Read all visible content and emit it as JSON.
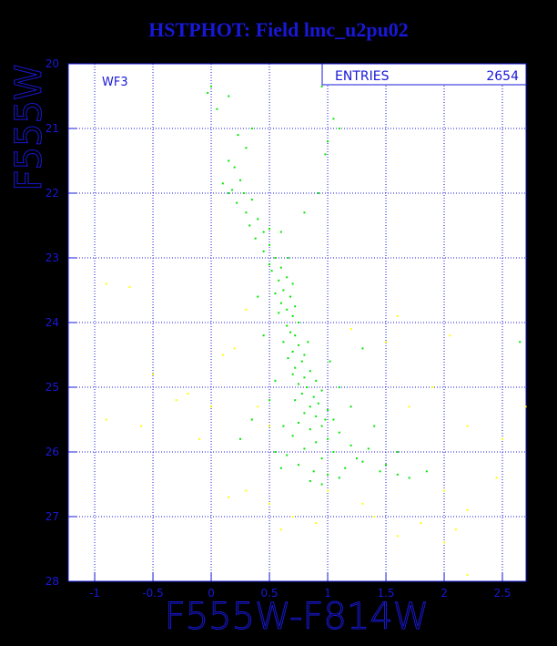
{
  "chart_data": {
    "type": "scatter",
    "title": "HSTPHOT: Field lmc_u2pu02",
    "xlabel": "F555W-F814W",
    "ylabel": "F555W",
    "annotation": "WF3",
    "stats": {
      "label": "ENTRIES",
      "value": 2654
    },
    "xlim": [
      -1.227,
      2.703
    ],
    "ylim": [
      28,
      20
    ],
    "xticks": [
      -1,
      -0.5,
      0,
      0.5,
      1,
      1.5,
      2,
      2.5
    ],
    "yticks": [
      20,
      21,
      22,
      23,
      24,
      25,
      26,
      27,
      28
    ],
    "grid": true,
    "series": [
      {
        "color": "#00e600",
        "x": [
          0.0,
          -0.03,
          0.15,
          0.05,
          0.95,
          1.05,
          1.1,
          1.0,
          0.98,
          0.23,
          0.3,
          0.15,
          0.2,
          0.25,
          0.1,
          0.18,
          0.28,
          0.35,
          0.22,
          0.15,
          0.3,
          0.4,
          0.33,
          0.45,
          0.38,
          0.5,
          0.45,
          0.55,
          0.5,
          0.6,
          0.52,
          0.65,
          0.58,
          0.7,
          0.62,
          0.55,
          0.68,
          0.6,
          0.72,
          0.65,
          0.58,
          0.7,
          0.75,
          0.65,
          0.68,
          0.72,
          0.62,
          0.75,
          0.7,
          0.8,
          0.66,
          0.78,
          0.72,
          0.85,
          0.7,
          0.8,
          0.9,
          0.75,
          0.82,
          0.95,
          0.78,
          0.88,
          0.72,
          0.92,
          0.85,
          1.0,
          0.8,
          0.9,
          1.05,
          0.75,
          0.95,
          0.85,
          1.1,
          0.7,
          1.0,
          0.9,
          1.2,
          0.8,
          1.05,
          0.65,
          0.95,
          1.3,
          0.75,
          1.15,
          0.88,
          1.45,
          1.0,
          1.6,
          0.6,
          1.7,
          1.25,
          1.35,
          1.5,
          1.1,
          0.85,
          1.85,
          0.55,
          0.5,
          0.62,
          1.02,
          1.1,
          0.4,
          0.45,
          0.55,
          1.2,
          2.65,
          0.8,
          0.92,
          0.35,
          0.6,
          1.3,
          0.25,
          0.35,
          1.4,
          1.6,
          0.95,
          0.98,
          0.83,
          0.66,
          0.5
        ],
        "values": [
          20.35,
          20.45,
          20.5,
          20.7,
          20.35,
          20.85,
          21.0,
          21.2,
          21.4,
          21.1,
          21.3,
          21.5,
          21.6,
          21.8,
          21.85,
          21.95,
          22.0,
          22.1,
          22.15,
          22.0,
          22.3,
          22.4,
          22.5,
          22.6,
          22.7,
          22.8,
          22.9,
          23.0,
          23.1,
          23.15,
          23.2,
          23.3,
          23.35,
          23.4,
          23.5,
          23.55,
          23.6,
          23.7,
          23.75,
          23.8,
          23.85,
          23.9,
          24.0,
          24.05,
          24.15,
          24.2,
          24.3,
          24.35,
          24.45,
          24.5,
          24.55,
          24.6,
          24.7,
          24.75,
          24.8,
          24.85,
          24.9,
          24.95,
          25.0,
          25.05,
          25.1,
          25.15,
          25.2,
          25.25,
          25.3,
          25.35,
          25.4,
          25.45,
          25.5,
          25.55,
          25.6,
          25.65,
          25.7,
          25.75,
          25.8,
          25.85,
          25.9,
          25.95,
          26.0,
          26.05,
          26.1,
          26.15,
          26.2,
          26.25,
          26.3,
          26.3,
          26.35,
          26.35,
          26.25,
          26.4,
          26.1,
          25.95,
          26.2,
          26.4,
          26.45,
          26.3,
          26.0,
          25.2,
          25.6,
          24.6,
          25.0,
          23.6,
          24.2,
          24.9,
          25.3,
          24.3,
          22.3,
          22.0,
          21.0,
          22.6,
          24.4,
          25.8,
          25.5,
          25.6,
          26.0,
          26.5,
          25.5,
          24.3,
          23.0,
          22.55
        ]
      },
      {
        "color": "#ffff00",
        "x": [
          -0.9,
          -0.6,
          -0.5,
          -0.2,
          -0.9,
          -0.7,
          0.1,
          0.2,
          0.4,
          0.5,
          0.3,
          0.5,
          0.7,
          1.0,
          1.4,
          1.6,
          1.8,
          2.0,
          2.1,
          2.2,
          1.5,
          1.2,
          2.05,
          1.6,
          2.5,
          2.45,
          2.7,
          2.0,
          2.2,
          1.7,
          0.3,
          -0.1,
          1.3,
          0.15,
          0.6,
          2.2,
          0.9,
          1.9,
          0.0,
          -0.3
        ],
        "values": [
          25.5,
          25.6,
          24.8,
          25.1,
          23.4,
          23.45,
          24.5,
          24.4,
          25.3,
          25.6,
          26.6,
          26.8,
          27.0,
          26.6,
          27.0,
          27.3,
          27.1,
          27.4,
          27.2,
          26.9,
          24.3,
          24.1,
          24.2,
          23.9,
          25.8,
          26.4,
          25.3,
          26.6,
          25.6,
          25.3,
          23.8,
          25.8,
          26.8,
          26.7,
          27.2,
          27.9,
          27.1,
          25.0,
          25.3,
          25.2
        ]
      }
    ]
  }
}
